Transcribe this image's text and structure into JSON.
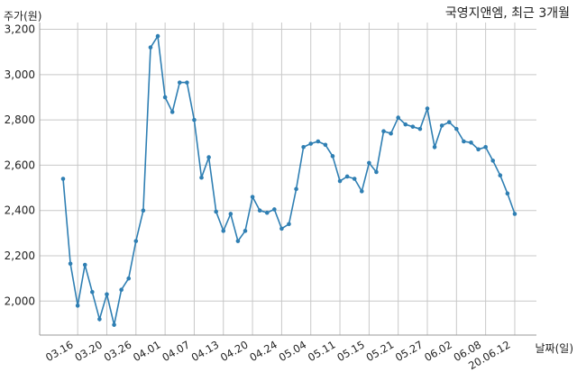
{
  "chart_data": {
    "type": "line",
    "title": "국영지앤엠, 최근 3개월",
    "ylabel": "주가(원)",
    "xlabel": "날짜(일)",
    "ylim": [
      1850,
      3230
    ],
    "yticks": [
      "2,000",
      "2,200",
      "2,400",
      "2,600",
      "2,800",
      "3,000",
      "3,200"
    ],
    "ytick_values": [
      2000,
      2200,
      2400,
      2600,
      2800,
      3000,
      3200
    ],
    "grid": true,
    "xtick_labels": [
      "03.16",
      "03.20",
      "03.26",
      "04.01",
      "04.07",
      "04.13",
      "04.20",
      "04.24",
      "05.04",
      "05.11",
      "05.15",
      "05.21",
      "05.27",
      "06.02",
      "06.08",
      "20.06.12"
    ],
    "xtick_indices": [
      2,
      6,
      10,
      14,
      18,
      22,
      26,
      30,
      34,
      38,
      42,
      46,
      50,
      54,
      58,
      62
    ],
    "series": [
      {
        "color": "#2f7fb3",
        "values": [
          2540,
          2165,
          1980,
          2160,
          2040,
          1920,
          2030,
          1895,
          2050,
          2100,
          2265,
          2400,
          3120,
          3170,
          2900,
          2835,
          2965,
          2965,
          2800,
          2545,
          2635,
          2395,
          2310,
          2385,
          2265,
          2310,
          2460,
          2400,
          2390,
          2405,
          2320,
          2340,
          2495,
          2680,
          2695,
          2705,
          2690,
          2640,
          2530,
          2550,
          2540,
          2485,
          2610,
          2570,
          2750,
          2740,
          2810,
          2780,
          2770,
          2760,
          2850,
          2680,
          2775,
          2790,
          2760,
          2705,
          2700,
          2670,
          2680,
          2620,
          2555,
          2475,
          2385
        ]
      }
    ]
  }
}
